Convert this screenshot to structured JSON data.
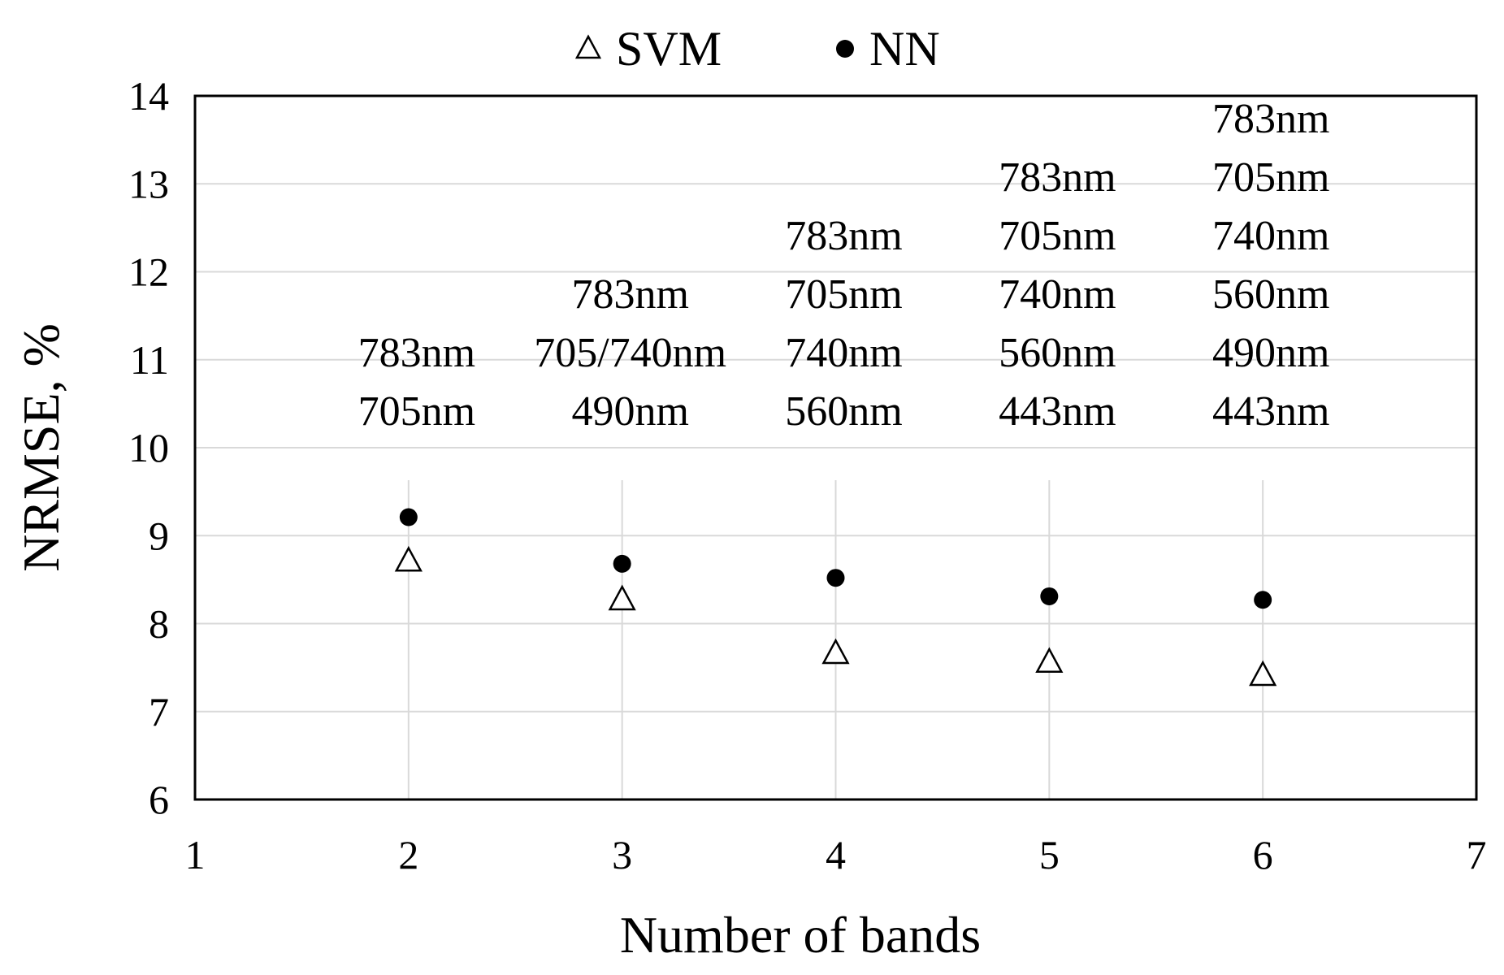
{
  "chart_data": {
    "type": "scatter",
    "title": "",
    "xlabel": "Number of bands",
    "ylabel": "NRMSE, %",
    "xlim": [
      1,
      7
    ],
    "ylim": [
      6,
      14
    ],
    "x_ticks": [
      1,
      2,
      3,
      4,
      5,
      6,
      7
    ],
    "y_ticks": [
      6,
      7,
      8,
      9,
      10,
      11,
      12,
      13,
      14
    ],
    "grid": true,
    "legend_position": "top",
    "series": [
      {
        "name": "SVM",
        "marker": "triangle-open",
        "color": "#000000",
        "x": [
          2,
          3,
          4,
          5,
          6
        ],
        "y": [
          8.72,
          8.28,
          7.67,
          7.57,
          7.42
        ]
      },
      {
        "name": "NN",
        "marker": "circle-filled",
        "color": "#000000",
        "x": [
          2,
          3,
          4,
          5,
          6
        ],
        "y": [
          9.21,
          8.68,
          8.52,
          8.31,
          8.27
        ]
      }
    ],
    "annotations": [
      {
        "x": 2,
        "lines": [
          "783nm",
          "705nm"
        ]
      },
      {
        "x": 3,
        "lines": [
          "783nm",
          "705/740nm",
          "490nm"
        ]
      },
      {
        "x": 4,
        "lines": [
          "783nm",
          "705nm",
          "740nm",
          "560nm"
        ]
      },
      {
        "x": 5,
        "lines": [
          "783nm",
          "705nm",
          "740nm",
          "560nm",
          "443nm"
        ]
      },
      {
        "x": 6,
        "lines": [
          "783nm",
          "705nm",
          "740nm",
          "560nm",
          "490nm",
          "443nm"
        ]
      }
    ]
  },
  "colors": {
    "grid": "#d9d9d9",
    "axis": "#000000",
    "background": "#ffffff"
  }
}
